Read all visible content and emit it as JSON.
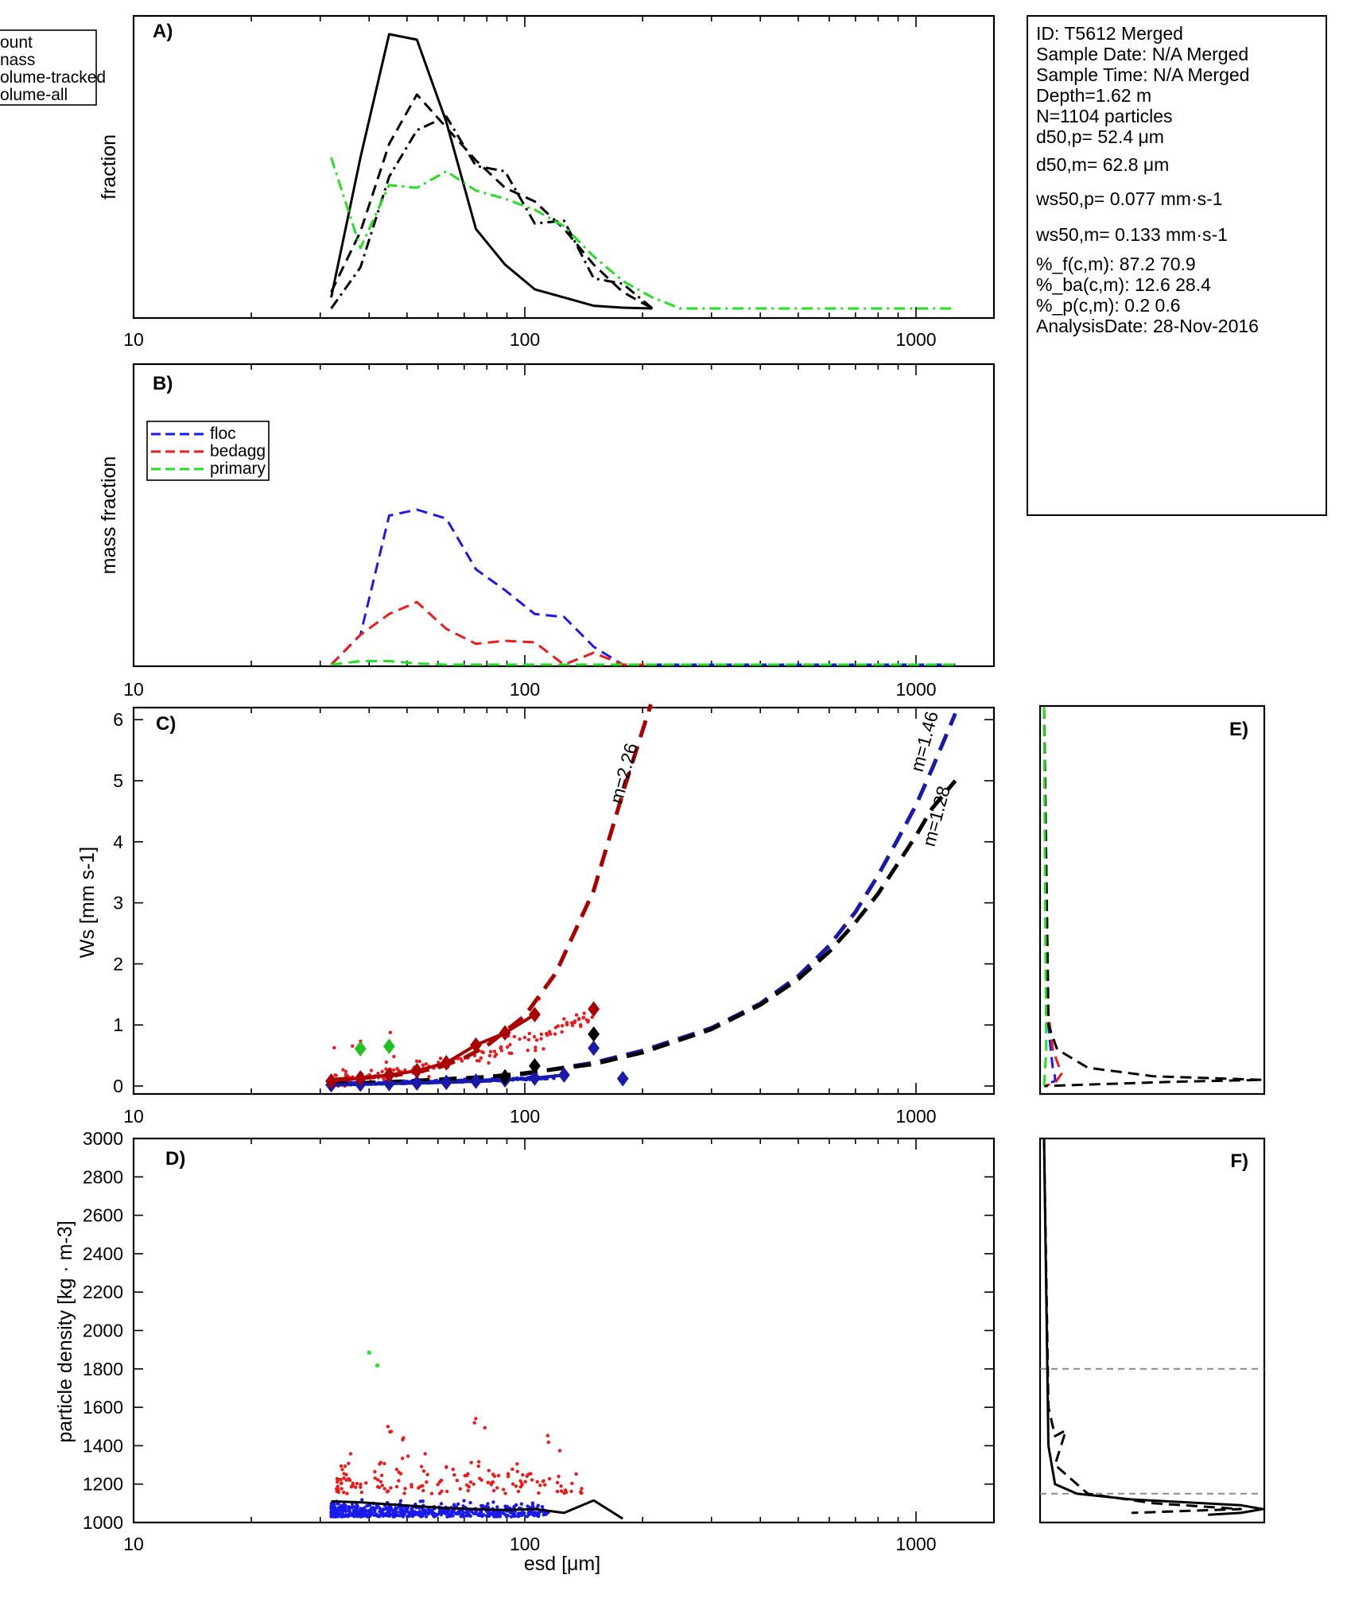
{
  "info_box": {
    "lines": [
      "ID: T5612 Merged",
      "Sample Date: N/A Merged",
      "Sample Time: N/A Merged",
      "Depth=1.62 m",
      "N=1104 particles",
      "d50,p= 52.4 μm",
      "d50,m= 62.8 μm",
      "ws50,p= 0.077 mm·s-1",
      "ws50,m= 0.133 mm·s-1",
      "%_f(c,m): 87.2 70.9",
      "%_ba(c,m): 12.6 28.4",
      "%_p(c,m): 0.2 0.6",
      "AnalysisDate: 28-Nov-2016"
    ]
  },
  "colors": {
    "black": "#000000",
    "green": "#22e022",
    "blue": "#1a1aee",
    "red": "#ee1a1a",
    "darkred": "#aa0000",
    "darkblue": "#1a1aaa",
    "gray": "#888888"
  },
  "chart_data": [
    {
      "panel": "A)",
      "type": "line",
      "ylabel": "fraction",
      "xscale": "log",
      "xlim": [
        10,
        1500
      ],
      "xticklabels": [
        "10",
        "100",
        "1000"
      ],
      "legend": {
        "position": "top-left",
        "entries": [
          "ount",
          "nass",
          "olume-tracked",
          "olume-all"
        ]
      },
      "series": [
        {
          "name": "ount",
          "style": "solid",
          "color": "#000000",
          "x": [
            32,
            38,
            45,
            53,
            63,
            75,
            89,
            106,
            126,
            150,
            178,
            212
          ],
          "y": [
            0.04,
            0.55,
            1.0,
            0.98,
            0.68,
            0.29,
            0.16,
            0.07,
            0.04,
            0.01,
            0.003,
            0.0
          ]
        },
        {
          "name": "nass",
          "style": "dashed",
          "color": "#000000",
          "x": [
            32,
            38,
            45,
            53,
            63,
            75,
            89,
            106,
            126,
            150,
            178,
            212
          ],
          "y": [
            0.06,
            0.28,
            0.6,
            0.78,
            0.66,
            0.54,
            0.44,
            0.39,
            0.29,
            0.16,
            0.06,
            0.0
          ]
        },
        {
          "name": "olume-tracked",
          "style": "dashdot",
          "color": "#000000",
          "x": [
            32,
            38,
            45,
            53,
            63,
            75,
            89,
            106,
            126,
            150,
            178,
            212
          ],
          "y": [
            0.0,
            0.15,
            0.48,
            0.65,
            0.7,
            0.52,
            0.5,
            0.31,
            0.32,
            0.11,
            0.09,
            0.0
          ]
        },
        {
          "name": "olume-all",
          "style": "dashdot",
          "color": "#22e022",
          "x": [
            32,
            38,
            45,
            53,
            63,
            75,
            89,
            106,
            126,
            150,
            178,
            212,
            250,
            500,
            1000,
            1260
          ],
          "y": [
            0.55,
            0.22,
            0.45,
            0.44,
            0.5,
            0.43,
            0.4,
            0.36,
            0.3,
            0.19,
            0.1,
            0.04,
            0.0,
            0.0,
            0.0,
            0.0
          ]
        }
      ]
    },
    {
      "panel": "B)",
      "type": "line",
      "ylabel": "mass fraction",
      "xscale": "log",
      "xlim": [
        10,
        1500
      ],
      "xticklabels": [
        "10",
        "100",
        "1000"
      ],
      "legend": {
        "position": "top-left",
        "entries": [
          "floc",
          "bedagg",
          "primary"
        ]
      },
      "series": [
        {
          "name": "floc",
          "style": "dashed",
          "color": "#1a1aee",
          "x": [
            32,
            38,
            45,
            53,
            63,
            75,
            89,
            106,
            126,
            150,
            178,
            250,
            500,
            1000,
            1260
          ],
          "y": [
            0.0,
            0.1,
            0.5,
            0.52,
            0.49,
            0.32,
            0.25,
            0.17,
            0.16,
            0.06,
            0.0,
            0.0,
            0.0,
            0.0,
            0.0
          ]
        },
        {
          "name": "bedagg",
          "style": "dashed",
          "color": "#ee1a1a",
          "x": [
            32,
            38,
            45,
            53,
            63,
            75,
            89,
            106,
            126,
            150,
            178,
            212
          ],
          "y": [
            0.0,
            0.1,
            0.17,
            0.21,
            0.12,
            0.07,
            0.08,
            0.075,
            0.0,
            0.04,
            0.0,
            0.0
          ]
        },
        {
          "name": "primary",
          "style": "dashed",
          "color": "#22e022",
          "x": [
            32,
            38,
            45,
            53,
            63,
            100,
            250,
            500,
            1000,
            1260
          ],
          "y": [
            0.0,
            0.012,
            0.012,
            0.004,
            0.0,
            0.0,
            0.0,
            0.0,
            0.0,
            0.0
          ]
        }
      ]
    },
    {
      "panel": "C)",
      "type": "scatter",
      "ylabel": "Ws [mm s-1]",
      "xscale": "log",
      "xlim": [
        10,
        1500
      ],
      "ylim": [
        -0.1,
        6.25
      ],
      "xticklabels": [
        "10",
        "100",
        "1000"
      ],
      "yticks": [
        0,
        1,
        2,
        3,
        4,
        5,
        6
      ],
      "fit_labels": {
        "red": "m=2.26",
        "blue": "m=1.46",
        "black": "m=1.28"
      },
      "fit_curves": [
        {
          "name": "m=2.26",
          "color": "#aa0000",
          "x": [
            32,
            40,
            50,
            60,
            70,
            80,
            100,
            120,
            150,
            180,
            210
          ],
          "y": [
            0.1,
            0.14,
            0.2,
            0.3,
            0.46,
            0.66,
            1.15,
            1.85,
            3.2,
            4.9,
            6.25
          ]
        },
        {
          "name": "m=1.46",
          "color": "#1a1aaa",
          "x": [
            32,
            50,
            80,
            100,
            150,
            200,
            300,
            400,
            500,
            600,
            700,
            800,
            900,
            1000,
            1100,
            1260
          ],
          "y": [
            0.02,
            0.06,
            0.13,
            0.2,
            0.38,
            0.58,
            0.95,
            1.35,
            1.8,
            2.3,
            2.85,
            3.45,
            4.05,
            4.6,
            5.2,
            6.1
          ]
        },
        {
          "name": "m=1.28",
          "color": "#000000",
          "x": [
            32,
            50,
            80,
            100,
            150,
            200,
            300,
            400,
            500,
            600,
            700,
            800,
            900,
            1000,
            1100,
            1260
          ],
          "y": [
            0.03,
            0.08,
            0.15,
            0.21,
            0.36,
            0.55,
            0.93,
            1.33,
            1.75,
            2.2,
            2.68,
            3.15,
            3.65,
            4.1,
            4.55,
            5.0
          ]
        }
      ],
      "binned_medians": [
        {
          "name": "floc-binned",
          "color": "#1a1aaa",
          "x": [
            32,
            38,
            45,
            53,
            63,
            75,
            89,
            106,
            126,
            150,
            178
          ],
          "y": [
            0.02,
            0.03,
            0.04,
            0.05,
            0.06,
            0.08,
            0.1,
            0.13,
            0.18,
            0.62,
            0.12
          ]
        },
        {
          "name": "bedagg-binned",
          "color": "#aa0000",
          "x": [
            32,
            38,
            45,
            53,
            63,
            75,
            89,
            106,
            150
          ],
          "y": [
            0.08,
            0.13,
            0.18,
            0.25,
            0.38,
            0.67,
            0.87,
            1.17,
            1.26
          ]
        },
        {
          "name": "primary-binned",
          "color": "#22c022",
          "x": [
            38,
            45
          ],
          "y": [
            0.61,
            0.65
          ]
        },
        {
          "name": "all-binned",
          "color": "#000000",
          "x": [
            89,
            106,
            150
          ],
          "y": [
            0.15,
            0.33,
            0.85
          ]
        }
      ]
    },
    {
      "panel": "D)",
      "type": "scatter",
      "ylabel": "particle density [kg · m-3]",
      "xlabel": "esd [μm]",
      "xscale": "log",
      "xlim": [
        10,
        1500
      ],
      "ylim": [
        1000,
        3000
      ],
      "xticklabels": [
        "10",
        "100",
        "1000"
      ],
      "yticks": [
        1000,
        1200,
        1400,
        1600,
        1800,
        2000,
        2200,
        2400,
        2600,
        2800,
        3000
      ],
      "median_line": {
        "x": [
          32,
          38,
          45,
          53,
          63,
          75,
          89,
          106,
          126,
          150,
          178
        ],
        "y": [
          1110,
          1105,
          1095,
          1085,
          1075,
          1070,
          1065,
          1070,
          1050,
          1115,
          1020
        ]
      },
      "green_points": {
        "x": [
          40,
          42
        ],
        "y": [
          1885,
          1818
        ]
      }
    },
    {
      "panel": "E)",
      "type": "line",
      "series": [
        {
          "name": "floc",
          "color": "#1a1aee",
          "style": "dashed",
          "x": [
            0.0,
            0.02,
            0.03,
            0.04,
            0.05,
            0.05,
            0.02,
            0.0
          ],
          "y": [
            6.2,
            1.0,
            0.6,
            0.3,
            0.15,
            0.08,
            0.05,
            0.0
          ]
        },
        {
          "name": "bedagg",
          "color": "#ee1a1a",
          "style": "dashed",
          "x": [
            0.0,
            0.02,
            0.04,
            0.08,
            0.05,
            0.0
          ],
          "y": [
            6.2,
            1.2,
            0.6,
            0.2,
            0.05,
            0.0
          ]
        },
        {
          "name": "all",
          "color": "#000000",
          "style": "dashed",
          "x": [
            0.0,
            0.02,
            0.06,
            0.2,
            0.5,
            1.0,
            0.6,
            0.0
          ],
          "y": [
            6.2,
            1.0,
            0.6,
            0.3,
            0.16,
            0.1,
            0.07,
            0.0
          ]
        },
        {
          "name": "primary",
          "color": "#22e022",
          "style": "dashed",
          "x": [
            0.0,
            0.005,
            0.01,
            0.0
          ],
          "y": [
            6.2,
            3.0,
            0.6,
            0.0
          ]
        }
      ]
    },
    {
      "panel": "F)",
      "type": "line",
      "reference_lines_y": [
        1150,
        1800
      ],
      "series": [
        {
          "name": "median-all",
          "color": "#000000",
          "style": "solid",
          "x": [
            0.0,
            0.02,
            0.05,
            0.15,
            0.4,
            0.9,
            1.0,
            0.9,
            0.75
          ],
          "y": [
            3000,
            1400,
            1200,
            1150,
            1120,
            1090,
            1070,
            1050,
            1040
          ]
        },
        {
          "name": "median-mass",
          "color": "#000000",
          "style": "dashed",
          "x": [
            0.0,
            0.02,
            0.05,
            0.1,
            0.05,
            0.2,
            0.5,
            0.9,
            0.4
          ],
          "y": [
            3000,
            1600,
            1450,
            1480,
            1300,
            1150,
            1100,
            1070,
            1050
          ]
        }
      ]
    }
  ]
}
